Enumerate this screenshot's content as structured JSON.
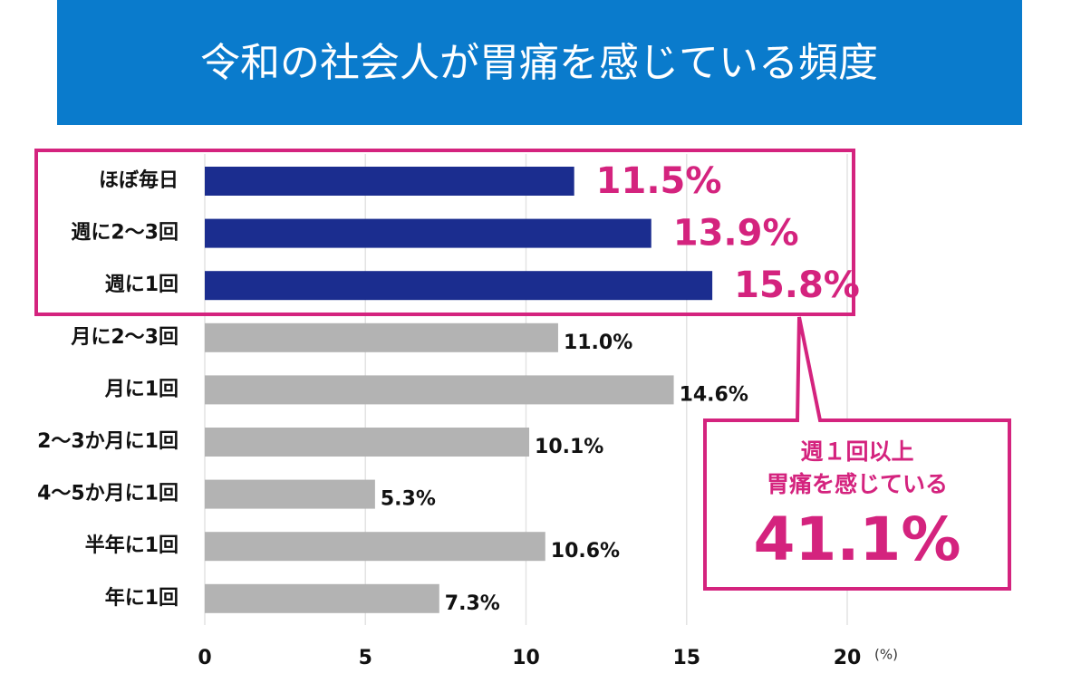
{
  "chart_data": {
    "type": "barh",
    "title": "令和の社会人が胃痛を感じている頻度",
    "categories": [
      "ほぼ毎日",
      "週に2〜3回",
      "週に1回",
      "月に2〜3回",
      "月に1回",
      "2〜3か月に1回",
      "4〜5か月に1回",
      "半年に1回",
      "年に1回"
    ],
    "values": [
      11.5,
      13.9,
      15.8,
      11.0,
      14.6,
      10.1,
      5.3,
      10.6,
      7.3
    ],
    "value_labels": [
      "11.5%",
      "13.9%",
      "15.8%",
      "11.0%",
      "14.6%",
      "10.1%",
      "5.3%",
      "10.6%",
      "7.3%"
    ],
    "colors": [
      "#1b2d8f",
      "#1b2d8f",
      "#1b2d8f",
      "#b3b3b3",
      "#b3b3b3",
      "#b3b3b3",
      "#b3b3b3",
      "#b3b3b3",
      "#b3b3b3"
    ],
    "label_colors": [
      "#d4237e",
      "#d4237e",
      "#d4237e",
      "#111111",
      "#111111",
      "#111111",
      "#111111",
      "#111111",
      "#111111"
    ],
    "xlim": [
      0,
      20
    ],
    "xticks": [
      0,
      5,
      10,
      15,
      20
    ],
    "xlabel": "(%)",
    "grid": true,
    "annotation": {
      "lines": [
        "週１回以上",
        "胃痛を感じている"
      ],
      "total": "41.1%"
    }
  }
}
